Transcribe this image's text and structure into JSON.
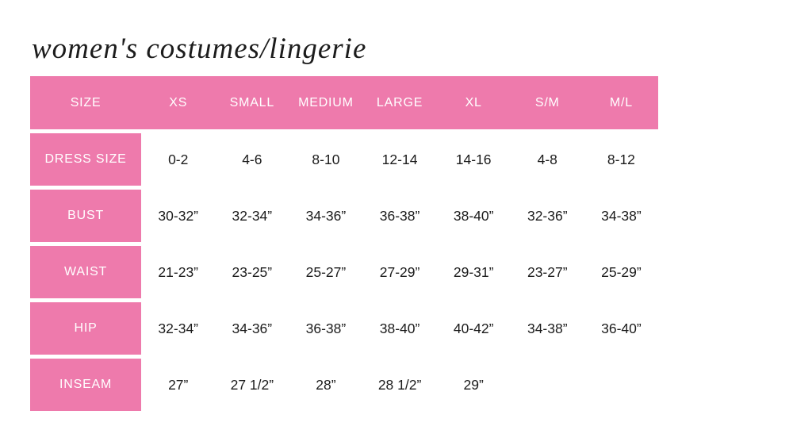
{
  "title": "women's costumes/lingerie",
  "colors": {
    "accent_pink": "#ee7aac",
    "header_text": "#ffffff",
    "body_text": "#1b1b1b",
    "background": "#ffffff"
  },
  "chart_data": {
    "type": "table",
    "title": "women's costumes/lingerie",
    "columns": [
      "SIZE",
      "XS",
      "SMALL",
      "MEDIUM",
      "LARGE",
      "XL",
      "S/M",
      "M/L"
    ],
    "rows": [
      {
        "label": "DRESS SIZE",
        "values": [
          "0-2",
          "4-6",
          "8-10",
          "12-14",
          "14-16",
          "4-8",
          "8-12"
        ]
      },
      {
        "label": "BUST",
        "values": [
          "30-32”",
          "32-34”",
          "34-36”",
          "36-38”",
          "38-40”",
          "32-36”",
          "34-38”"
        ]
      },
      {
        "label": "WAIST",
        "values": [
          "21-23”",
          "23-25”",
          "25-27”",
          "27-29”",
          "29-31”",
          "23-27”",
          "25-29”"
        ]
      },
      {
        "label": "HIP",
        "values": [
          "32-34”",
          "34-36”",
          "36-38”",
          "38-40”",
          "40-42”",
          "34-38”",
          "36-40”"
        ]
      },
      {
        "label": "INSEAM",
        "values": [
          "27”",
          "27 1/2”",
          "28”",
          "28 1/2”",
          "29”",
          "",
          ""
        ]
      }
    ]
  }
}
